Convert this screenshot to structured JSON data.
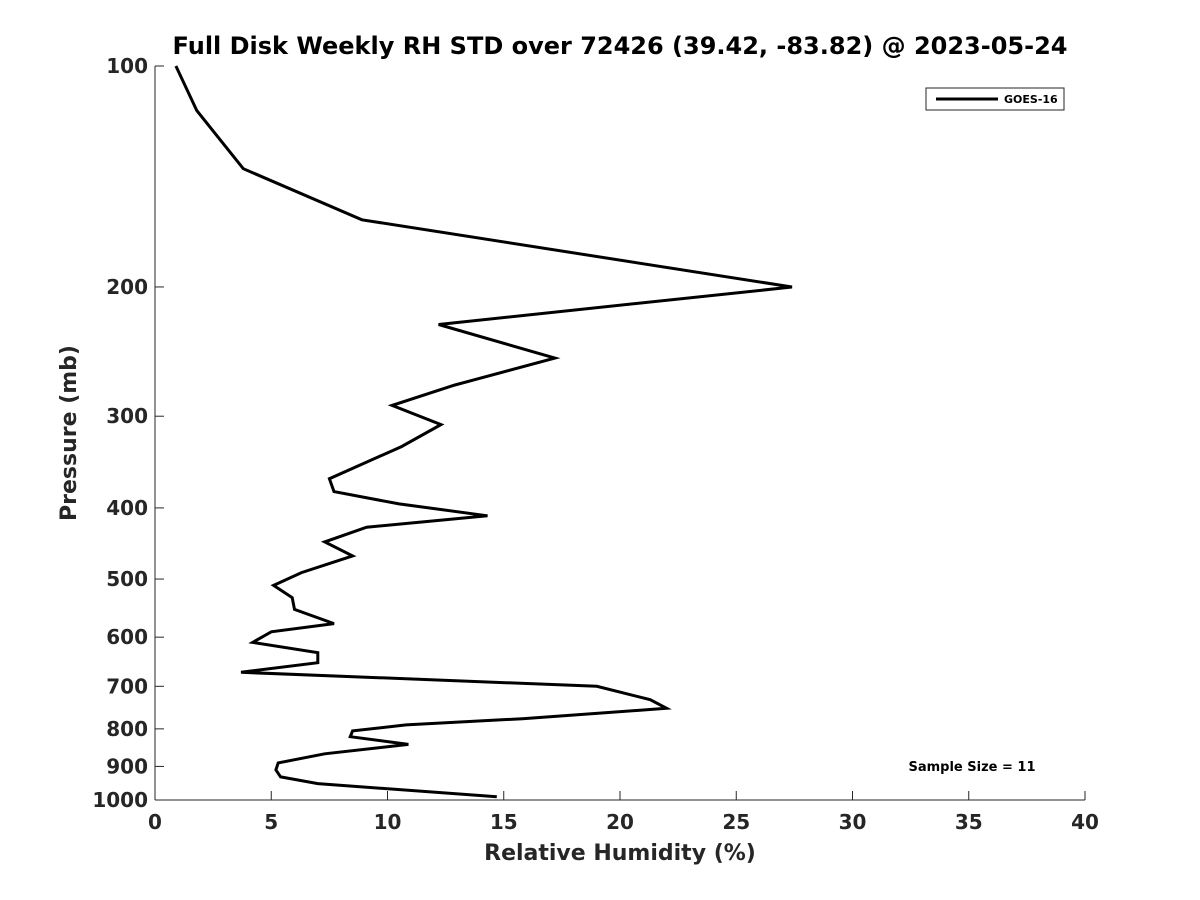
{
  "chart_data": {
    "type": "line",
    "title": "Full Disk Weekly RH STD over 72426 (39.42, -83.82) @ 2023-05-24",
    "xlabel": "Relative Humidity (%)",
    "ylabel": "Pressure (mb)",
    "xlim": [
      0,
      40
    ],
    "ylim": [
      100,
      1000
    ],
    "y_scale": "log",
    "y_reversed": true,
    "x_ticks": [
      0,
      5,
      10,
      15,
      20,
      25,
      30,
      35,
      40
    ],
    "x_tick_labels": [
      "0",
      "5",
      "10",
      "15",
      "20",
      "25",
      "30",
      "35",
      "40"
    ],
    "y_ticks": [
      100,
      200,
      300,
      400,
      500,
      600,
      700,
      800,
      900,
      1000
    ],
    "y_tick_labels": [
      "100",
      "200",
      "300",
      "400",
      "500",
      "600",
      "700",
      "800",
      "900",
      "1000"
    ],
    "grid": false,
    "legend": {
      "placement": "top-right",
      "entries": [
        "GOES-16"
      ]
    },
    "annotation": "Sample Size = 11",
    "series": [
      {
        "name": "GOES-16",
        "color": "#000000",
        "x": [
          0.9,
          1.8,
          3.8,
          8.9,
          27.4,
          12.2,
          17.2,
          12.9,
          10.2,
          12.3,
          10.6,
          7.5,
          7.7,
          10.5,
          14.3,
          9.1,
          7.3,
          8.5,
          6.3,
          5.1,
          5.9,
          6.0,
          7.7,
          5.0,
          4.2,
          7.0,
          7.0,
          3.7,
          19.0,
          21.3,
          22.0,
          15.8,
          10.8,
          8.5,
          8.4,
          10.9,
          7.3,
          5.3,
          5.2,
          5.4,
          7.0,
          14.7
        ],
        "y": [
          100,
          115,
          138,
          162,
          200,
          225,
          250,
          272,
          290,
          308,
          330,
          365,
          380,
          395,
          410,
          425,
          445,
          465,
          490,
          510,
          530,
          550,
          575,
          590,
          610,
          630,
          650,
          670,
          700,
          730,
          750,
          775,
          790,
          805,
          820,
          840,
          865,
          890,
          910,
          930,
          950,
          990
        ]
      }
    ]
  }
}
